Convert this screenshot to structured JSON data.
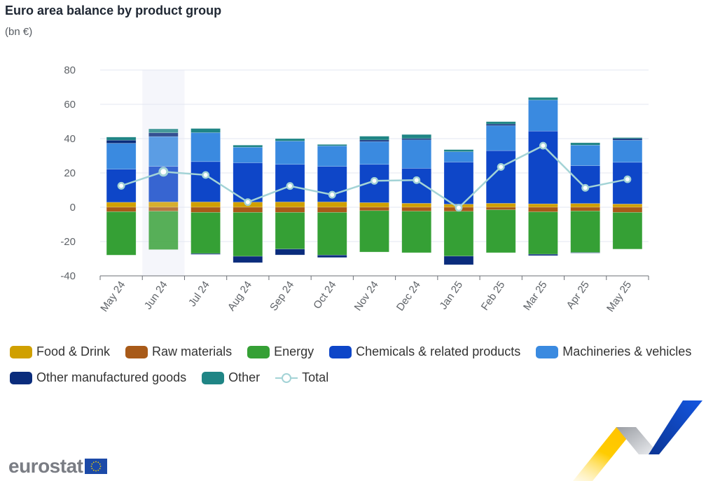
{
  "header": {
    "title": "Euro area balance by product group",
    "subtitle": "(bn €)"
  },
  "highlighted_category": "Jun 24",
  "colors": {
    "food_drink": "#d0a000",
    "raw_materials": "#a85a18",
    "energy": "#35a035",
    "chemicals": "#0e46c8",
    "machinery": "#3a8ae0",
    "other_manufactured": "#0a2c7c",
    "other": "#1f8585",
    "total": "#a3d3d6",
    "highlight_band": "#f5f6fb",
    "gridline": "#e3e7f0",
    "axis": "#6b6f76"
  },
  "chart_data": {
    "type": "bar",
    "stacked": true,
    "title": "Euro area balance by product group",
    "subtitle": "(bn €)",
    "xlabel": "",
    "ylabel": "",
    "ylim": [
      -40,
      80
    ],
    "yticks": [
      80,
      60,
      40,
      20,
      0,
      -20,
      -40
    ],
    "grid": true,
    "legend_position": "bottom",
    "categories": [
      "May 24",
      "Jun 24",
      "Jul 24",
      "Aug 24",
      "Sep 24",
      "Oct 24",
      "Nov 24",
      "Dec 24",
      "Jan 25",
      "Feb 25",
      "Mar 25",
      "Apr 25",
      "May 25"
    ],
    "series": [
      {
        "key": "food_drink",
        "name": "Food & Drink",
        "type": "bar",
        "values": [
          2.9,
          3.1,
          3.1,
          3.0,
          3.1,
          3.1,
          2.7,
          2.3,
          1.8,
          2.3,
          2.0,
          2.2,
          1.9
        ]
      },
      {
        "key": "raw_materials",
        "name": "Raw materials",
        "type": "bar",
        "values": [
          -2.6,
          -2.3,
          -3.0,
          -3.0,
          -3.0,
          -3.0,
          -2.0,
          -2.3,
          -2.4,
          -1.5,
          -2.7,
          -2.2,
          -3.0
        ]
      },
      {
        "key": "energy",
        "name": "Energy",
        "type": "bar",
        "values": [
          -25.3,
          -22.4,
          -24.0,
          -25.6,
          -21.4,
          -24.9,
          -24.1,
          -24.2,
          -26.1,
          -25.0,
          -24.7,
          -24.2,
          -21.4
        ]
      },
      {
        "key": "chemicals",
        "name": "Chemicals & related products",
        "type": "bar",
        "values": [
          19.3,
          20.7,
          23.5,
          22.9,
          21.9,
          20.7,
          22.3,
          20.4,
          24.5,
          30.7,
          42.4,
          22.0,
          24.3
        ]
      },
      {
        "key": "machinery",
        "name": "Machineries & vehicles",
        "type": "bar",
        "values": [
          15.1,
          17.4,
          16.9,
          9.1,
          13.6,
          12.0,
          13.3,
          16.6,
          6.1,
          14.6,
          18.1,
          12.0,
          12.9
        ]
      },
      {
        "key": "other_manufactured",
        "name": "Other manufactured goods",
        "type": "bar",
        "values": [
          1.8,
          2.2,
          -0.5,
          -3.7,
          -3.4,
          -1.4,
          0.9,
          0.8,
          -5.0,
          0.9,
          -0.8,
          -0.3,
          0.9
        ]
      },
      {
        "key": "other",
        "name": "Other",
        "type": "bar",
        "values": [
          1.8,
          2.3,
          2.4,
          1.2,
          1.4,
          0.8,
          2.2,
          2.3,
          1.2,
          1.4,
          1.5,
          1.4,
          0.6
        ]
      },
      {
        "key": "total",
        "name": "Total",
        "type": "line",
        "values": [
          12.5,
          20.7,
          18.8,
          3.0,
          12.4,
          7.3,
          15.4,
          15.8,
          -0.3,
          23.5,
          35.9,
          11.3,
          16.3
        ]
      }
    ]
  },
  "legend": {
    "row1": [
      {
        "key": "food_drink",
        "label": "Food & Drink"
      },
      {
        "key": "raw_materials",
        "label": "Raw materials"
      },
      {
        "key": "energy",
        "label": "Energy"
      },
      {
        "key": "chemicals",
        "label": "Chemicals & related products"
      },
      {
        "key": "machinery",
        "label": "Machineries & vehicles"
      }
    ],
    "row2": [
      {
        "key": "other_manufactured",
        "label": "Other manufactured goods"
      },
      {
        "key": "other",
        "label": "Other"
      },
      {
        "key": "total",
        "label": "Total"
      }
    ]
  },
  "footer": {
    "logo_text": "eurostat"
  }
}
